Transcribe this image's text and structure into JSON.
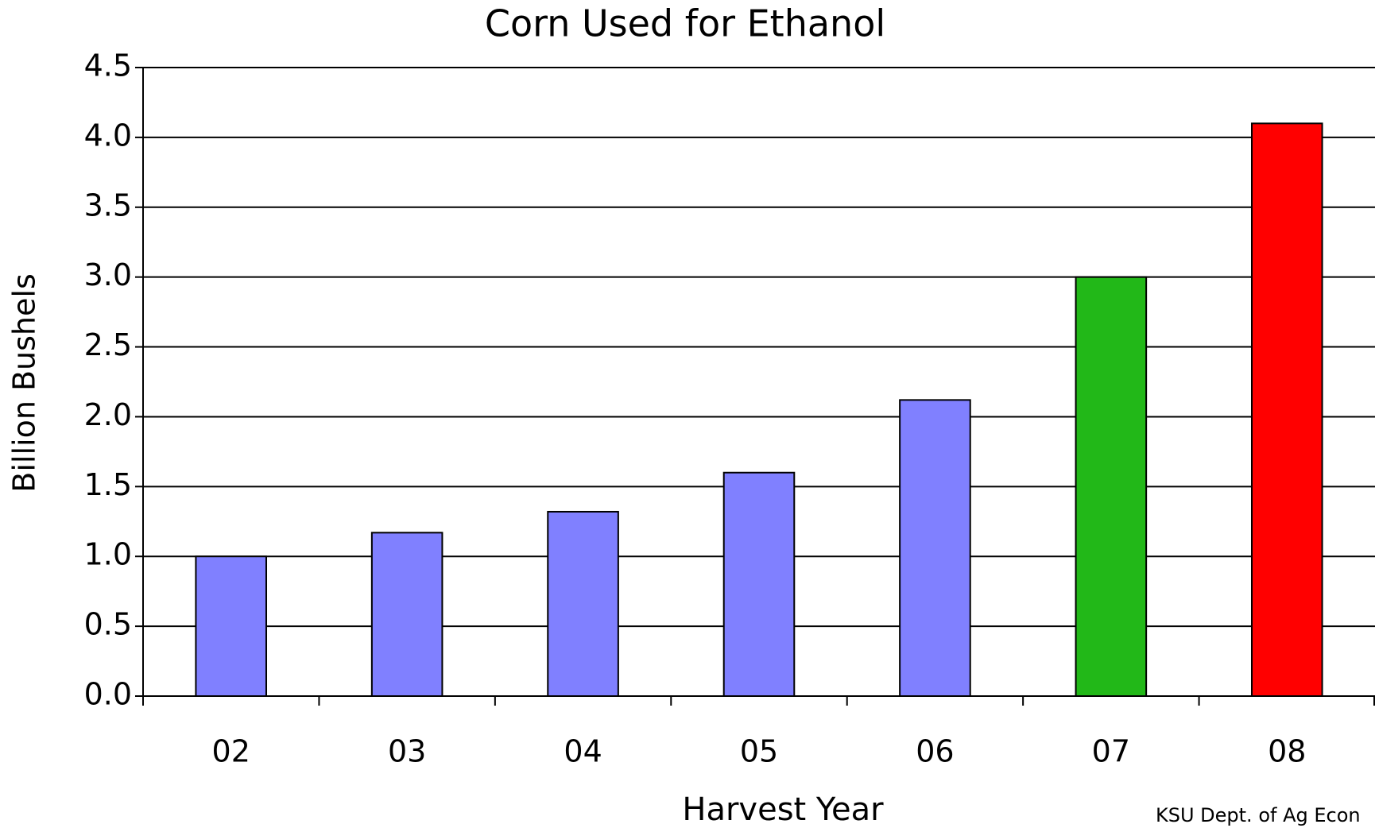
{
  "chart_data": {
    "type": "bar",
    "title": "Corn Used for Ethanol",
    "x_label": "Harvest Year",
    "y_label": "Billion Bushels",
    "source": "KSU Dept. of Ag Econ",
    "categories": [
      "02",
      "03",
      "04",
      "05",
      "06",
      "07",
      "08"
    ],
    "values": [
      1.0,
      1.17,
      1.32,
      1.6,
      2.12,
      3.0,
      4.1
    ],
    "colors": [
      "#8080ff",
      "#8080ff",
      "#8080ff",
      "#8080ff",
      "#8080ff",
      "#22b818",
      "#ff0000"
    ],
    "ylim": [
      0,
      4.5
    ],
    "yticks": [
      {
        "value": 0,
        "label": "0.0"
      },
      0.5,
      {
        "value": 1,
        "label": "1.0"
      },
      1.5,
      {
        "value": 2,
        "label": "2.0"
      },
      2.5,
      {
        "value": 3,
        "label": "3.0"
      },
      3.5,
      {
        "value": 4,
        "label": "4.0"
      },
      4.5
    ],
    "grid": true
  }
}
